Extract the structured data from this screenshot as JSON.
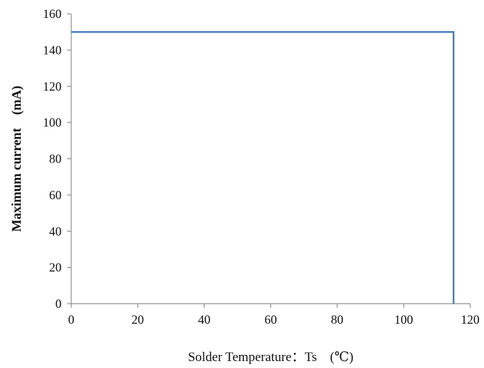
{
  "chart_data": {
    "type": "line",
    "xlabel": "Solder Temperature：Ts　(℃)",
    "ylabel": "Maximum current　(mA)",
    "xlim": [
      0,
      120
    ],
    "ylim": [
      0,
      160
    ],
    "x_ticks": [
      0,
      20,
      40,
      60,
      80,
      100,
      120
    ],
    "y_ticks": [
      0,
      20,
      40,
      60,
      80,
      100,
      120,
      140,
      160
    ],
    "grid": false,
    "legend": "none",
    "series": [
      {
        "x": [
          0,
          115,
          115
        ],
        "y": [
          150,
          150,
          0
        ],
        "color": "#4a7ab8"
      }
    ]
  }
}
